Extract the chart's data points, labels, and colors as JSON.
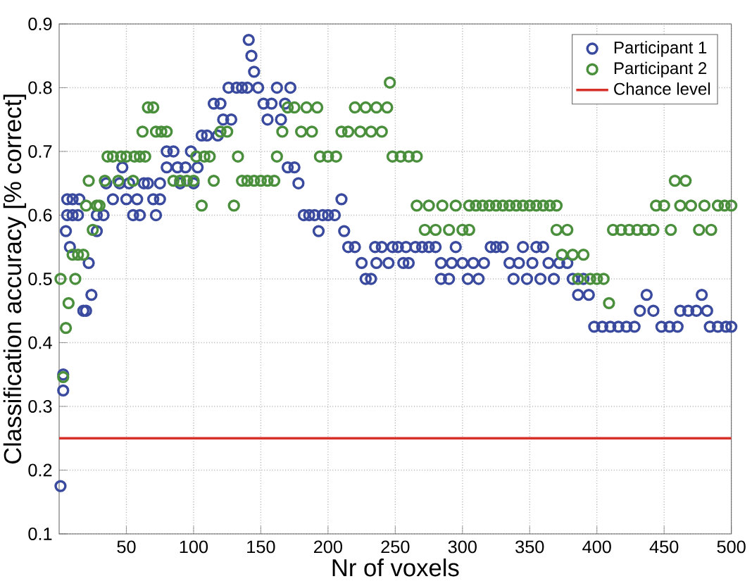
{
  "chart_data": {
    "type": "scatter",
    "xlabel": "Nr of voxels",
    "ylabel": "Classification accuracy [% correct]",
    "xlim": [
      0,
      500
    ],
    "xticks": [
      50,
      100,
      150,
      200,
      250,
      300,
      350,
      400,
      450,
      500
    ],
    "ylim": [
      0.1,
      0.9
    ],
    "yticks": [
      0.1,
      0.2,
      0.3,
      0.4,
      0.5,
      0.6,
      0.7,
      0.8,
      0.9
    ],
    "grid": true,
    "legend": "top right",
    "marker": "circle",
    "ref_lines": [
      {
        "axis": "y",
        "value": 0.25,
        "label": "Chance level",
        "color": "#d7312a"
      }
    ],
    "series": [
      {
        "name": "Participant 1",
        "color": "#3a4a9e",
        "x": [
          1,
          3,
          3,
          5,
          6,
          6,
          8,
          10,
          10,
          14,
          15,
          18,
          20,
          22,
          24,
          28,
          28,
          33,
          35,
          40,
          45,
          47,
          50,
          52,
          55,
          58,
          60,
          63,
          66,
          70,
          72,
          75,
          75,
          80,
          80,
          85,
          88,
          90,
          94,
          98,
          100,
          103,
          106,
          110,
          115,
          118,
          120,
          122,
          126,
          128,
          132,
          136,
          140,
          141,
          143,
          145,
          148,
          152,
          155,
          158,
          162,
          165,
          168,
          172,
          170,
          175,
          178,
          182,
          186,
          190,
          193,
          196,
          200,
          205,
          210,
          212,
          215,
          220,
          225,
          228,
          232,
          236,
          235,
          240,
          245,
          248,
          252,
          256,
          260,
          258,
          265,
          270,
          275,
          280,
          284,
          284,
          290,
          292,
          295,
          300,
          304,
          308,
          312,
          316,
          321,
          325,
          330,
          335,
          338,
          342,
          345,
          348,
          352,
          355,
          358,
          360,
          364,
          368,
          372,
          378,
          382,
          386,
          390,
          394,
          398,
          404,
          410,
          416,
          422,
          428,
          432,
          437,
          442,
          448,
          454,
          460,
          462,
          468,
          474,
          478,
          482,
          484,
          490,
          496,
          500
        ],
        "values": [
          0.175,
          0.35,
          0.325,
          0.575,
          0.6,
          0.625,
          0.55,
          0.6,
          0.625,
          0.6,
          0.625,
          0.45,
          0.45,
          0.525,
          0.475,
          0.575,
          0.6,
          0.6,
          0.65,
          0.625,
          0.65,
          0.675,
          0.625,
          0.65,
          0.6,
          0.625,
          0.6,
          0.65,
          0.65,
          0.625,
          0.6,
          0.65,
          0.625,
          0.7,
          0.675,
          0.7,
          0.675,
          0.65,
          0.675,
          0.7,
          0.65,
          0.675,
          0.725,
          0.725,
          0.775,
          0.725,
          0.775,
          0.75,
          0.8,
          0.75,
          0.8,
          0.8,
          0.8,
          0.875,
          0.85,
          0.825,
          0.8,
          0.775,
          0.75,
          0.775,
          0.8,
          0.75,
          0.775,
          0.8,
          0.675,
          0.675,
          0.65,
          0.6,
          0.6,
          0.6,
          0.575,
          0.6,
          0.6,
          0.6,
          0.625,
          0.575,
          0.55,
          0.55,
          0.525,
          0.5,
          0.5,
          0.525,
          0.55,
          0.55,
          0.525,
          0.55,
          0.55,
          0.525,
          0.525,
          0.55,
          0.55,
          0.55,
          0.55,
          0.55,
          0.525,
          0.5,
          0.5,
          0.525,
          0.55,
          0.525,
          0.5,
          0.525,
          0.5,
          0.525,
          0.55,
          0.55,
          0.55,
          0.525,
          0.5,
          0.525,
          0.55,
          0.5,
          0.525,
          0.55,
          0.5,
          0.55,
          0.525,
          0.5,
          0.525,
          0.525,
          0.5,
          0.475,
          0.5,
          0.475,
          0.425,
          0.425,
          0.425,
          0.425,
          0.425,
          0.425,
          0.45,
          0.475,
          0.45,
          0.425,
          0.425,
          0.425,
          0.45,
          0.45,
          0.45,
          0.475,
          0.45,
          0.425,
          0.425,
          0.425,
          0.425
        ]
      },
      {
        "name": "Participant 2",
        "color": "#4a8f3c",
        "x": [
          1,
          3,
          5,
          7,
          10,
          12,
          14,
          18,
          20,
          22,
          25,
          28,
          30,
          34,
          36,
          40,
          44,
          46,
          50,
          55,
          56,
          60,
          62,
          64,
          66,
          70,
          72,
          76,
          80,
          85,
          90,
          95,
          100,
          102,
          106,
          108,
          112,
          115,
          120,
          125,
          130,
          133,
          136,
          140,
          145,
          150,
          155,
          160,
          162,
          166,
          170,
          175,
          180,
          184,
          188,
          192,
          194,
          200,
          206,
          210,
          215,
          220,
          224,
          228,
          232,
          236,
          240,
          244,
          246,
          248,
          254,
          260,
          266,
          266,
          272,
          275,
          280,
          285,
          290,
          295,
          300,
          305,
          305,
          310,
          315,
          320,
          325,
          330,
          335,
          340,
          345,
          350,
          355,
          360,
          365,
          370,
          370,
          374,
          378,
          382,
          386,
          390,
          395,
          400,
          405,
          409,
          412,
          418,
          424,
          430,
          436,
          442,
          444,
          450,
          455,
          458,
          462,
          466,
          470,
          476,
          480,
          485,
          490,
          495,
          500
        ],
        "values": [
          0.5,
          0.346,
          0.423,
          0.462,
          0.538,
          0.5,
          0.538,
          0.538,
          0.615,
          0.654,
          0.577,
          0.615,
          0.615,
          0.654,
          0.692,
          0.692,
          0.654,
          0.692,
          0.692,
          0.654,
          0.692,
          0.692,
          0.731,
          0.692,
          0.769,
          0.769,
          0.731,
          0.731,
          0.731,
          0.654,
          0.654,
          0.654,
          0.654,
          0.692,
          0.615,
          0.692,
          0.692,
          0.654,
          0.731,
          0.731,
          0.615,
          0.692,
          0.654,
          0.654,
          0.654,
          0.654,
          0.654,
          0.654,
          0.692,
          0.731,
          0.769,
          0.769,
          0.731,
          0.769,
          0.731,
          0.769,
          0.692,
          0.692,
          0.692,
          0.731,
          0.731,
          0.769,
          0.731,
          0.769,
          0.731,
          0.769,
          0.731,
          0.769,
          0.808,
          0.692,
          0.692,
          0.692,
          0.692,
          0.615,
          0.577,
          0.615,
          0.577,
          0.615,
          0.577,
          0.615,
          0.577,
          0.577,
          0.615,
          0.615,
          0.615,
          0.615,
          0.615,
          0.615,
          0.615,
          0.615,
          0.615,
          0.615,
          0.615,
          0.615,
          0.615,
          0.615,
          0.577,
          0.538,
          0.577,
          0.538,
          0.5,
          0.538,
          0.5,
          0.5,
          0.5,
          0.462,
          0.577,
          0.577,
          0.577,
          0.577,
          0.577,
          0.577,
          0.615,
          0.615,
          0.577,
          0.654,
          0.615,
          0.654,
          0.615,
          0.577,
          0.615,
          0.577,
          0.615,
          0.615,
          0.615
        ]
      }
    ]
  }
}
